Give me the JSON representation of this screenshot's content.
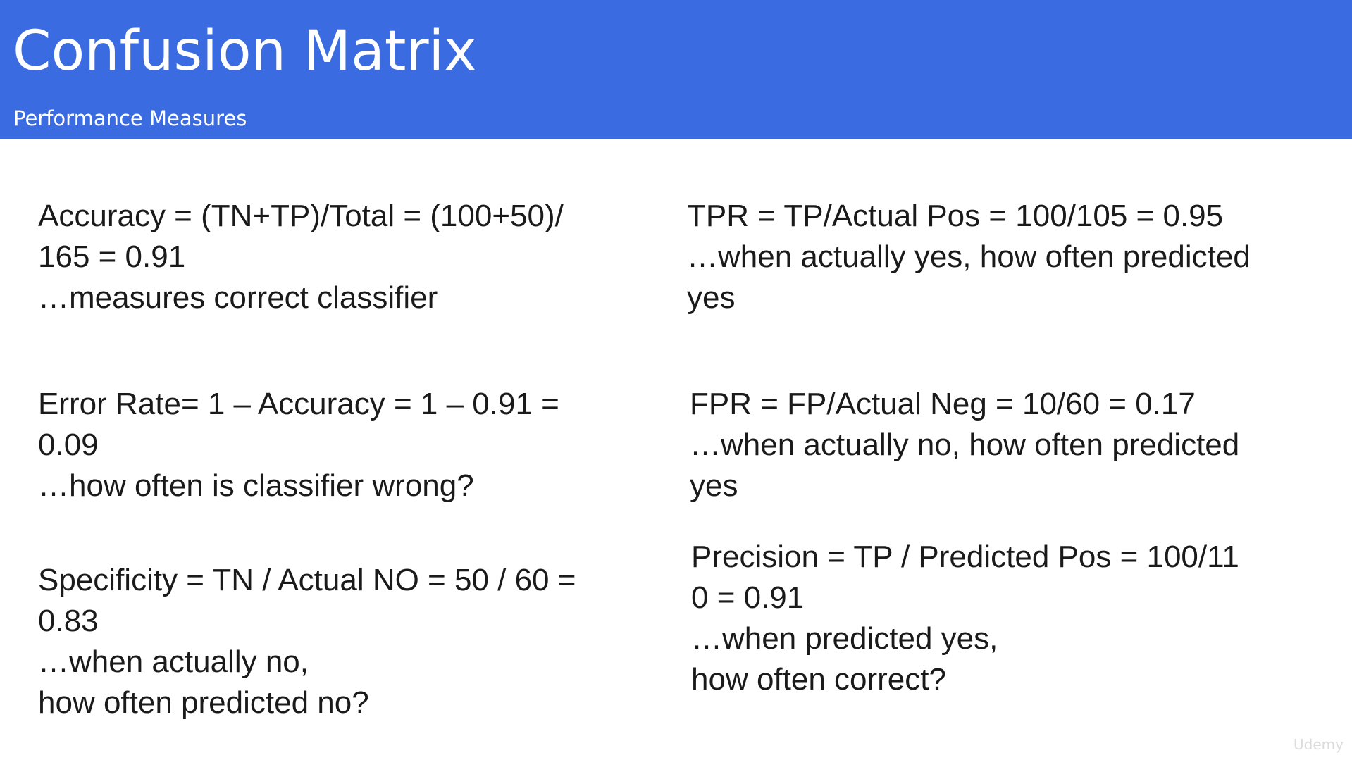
{
  "slide": {
    "title": "Confusion Matrix",
    "subtitle": "Performance Measures",
    "banner_color": "#3a6be0"
  },
  "measures": {
    "accuracy": {
      "lines": [
        "Accuracy = (TN+TP)/Total = (100+50)/",
        "165 = 0.91",
        "…measures correct classifier"
      ]
    },
    "tpr": {
      "lines": [
        "TPR = TP/Actual Pos = 100/105 = 0.95",
        "…when actually yes, how often predicted",
        "yes"
      ]
    },
    "error_rate": {
      "lines": [
        "Error Rate= 1 – Accuracy = 1 – 0.91 =",
        "0.09",
        "…how often is classifier wrong?"
      ]
    },
    "fpr": {
      "lines": [
        "FPR = FP/Actual Neg = 10/60 = 0.17",
        "…when actually no, how often predicted",
        "yes"
      ]
    },
    "specificity": {
      "lines": [
        "Specificity = TN / Actual NO = 50 / 60 =",
        "0.83",
        "…when actually no,",
        "how often predicted no?"
      ]
    },
    "precision": {
      "lines": [
        "Precision = TP / Predicted Pos = 100/11",
        "0 = 0.91",
        "…when predicted yes,",
        "how often correct?"
      ]
    }
  },
  "watermark": "Udemy"
}
